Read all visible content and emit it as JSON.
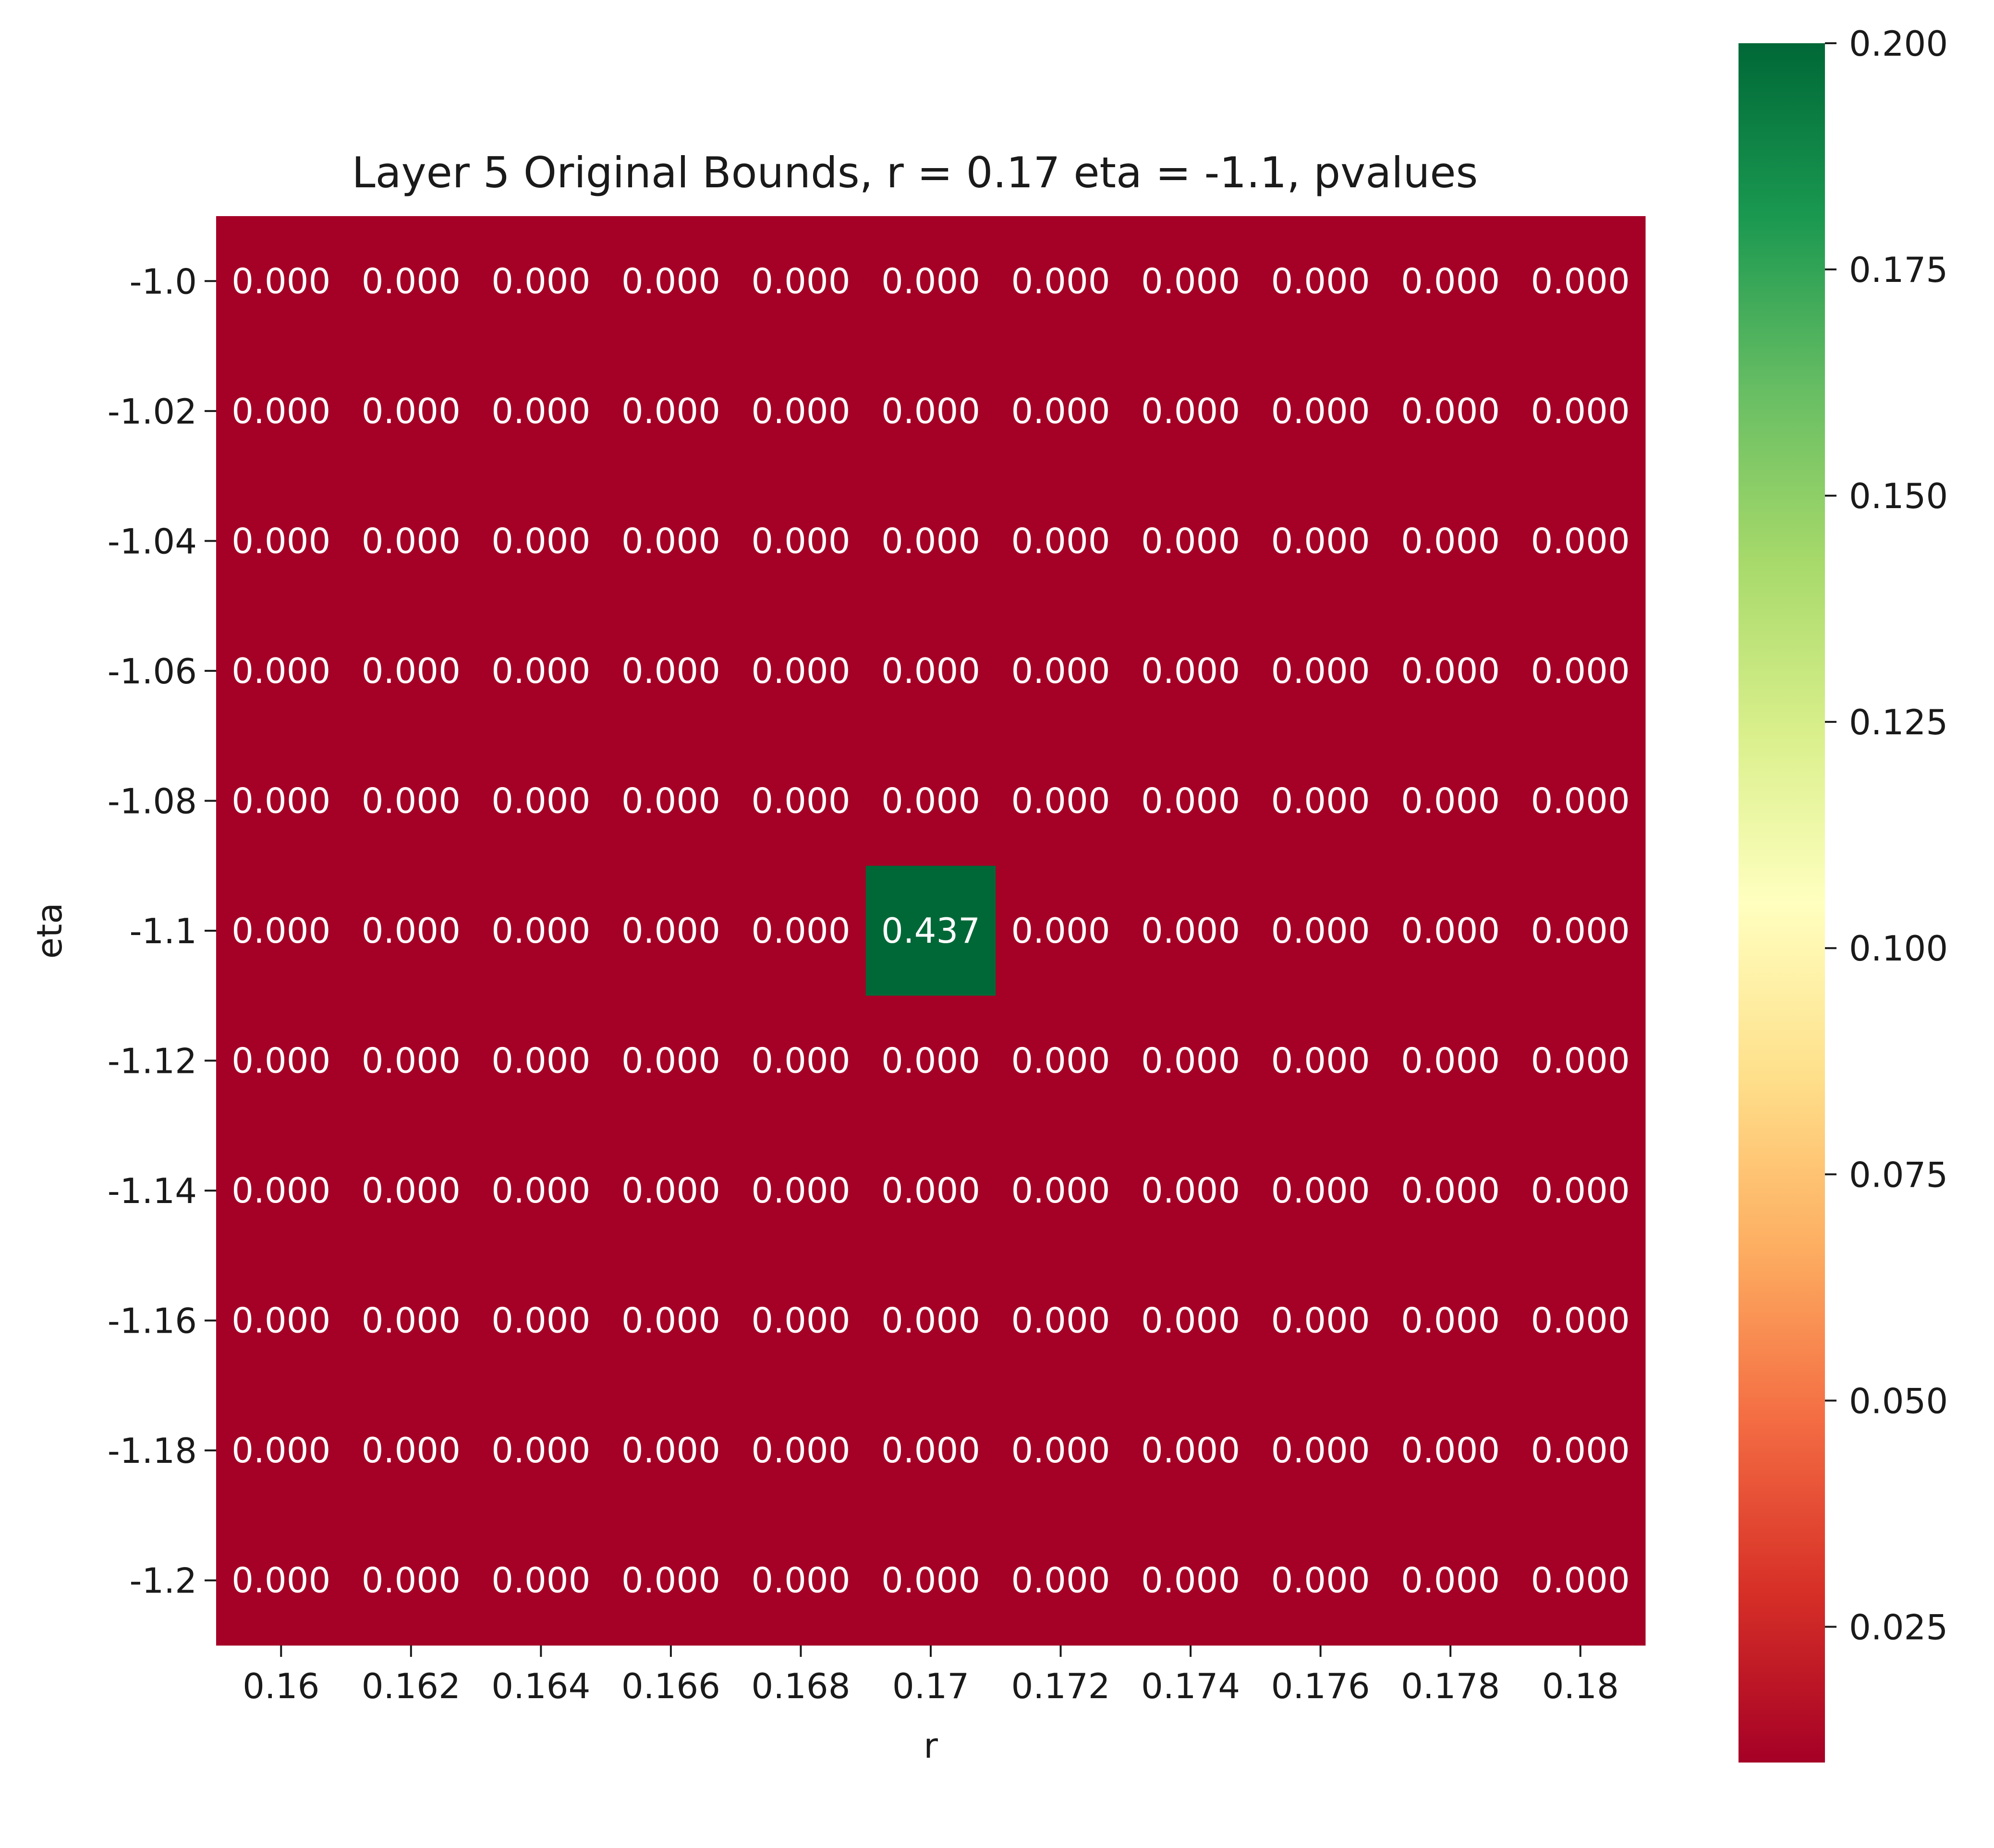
{
  "chart_data": {
    "type": "heatmap",
    "title": "Layer 5 Original Bounds, r = 0.17 eta = -1.1, pvalues",
    "xlabel": "r",
    "ylabel": "eta",
    "x_ticks": [
      "0.16",
      "0.162",
      "0.164",
      "0.166",
      "0.168",
      "0.17",
      "0.172",
      "0.174",
      "0.176",
      "0.178",
      "0.18"
    ],
    "y_ticks": [
      "-1.0",
      "-1.02",
      "-1.04",
      "-1.06",
      "-1.08",
      "-1.1",
      "-1.12",
      "-1.14",
      "-1.16",
      "-1.18",
      "-1.2"
    ],
    "values": [
      [
        0,
        0,
        0,
        0,
        0,
        0,
        0,
        0,
        0,
        0,
        0
      ],
      [
        0,
        0,
        0,
        0,
        0,
        0,
        0,
        0,
        0,
        0,
        0
      ],
      [
        0,
        0,
        0,
        0,
        0,
        0,
        0,
        0,
        0,
        0,
        0
      ],
      [
        0,
        0,
        0,
        0,
        0,
        0,
        0,
        0,
        0,
        0,
        0
      ],
      [
        0,
        0,
        0,
        0,
        0,
        0,
        0,
        0,
        0,
        0,
        0
      ],
      [
        0,
        0,
        0,
        0,
        0,
        0.437,
        0,
        0,
        0,
        0,
        0
      ],
      [
        0,
        0,
        0,
        0,
        0,
        0,
        0,
        0,
        0,
        0,
        0
      ],
      [
        0,
        0,
        0,
        0,
        0,
        0,
        0,
        0,
        0,
        0,
        0
      ],
      [
        0,
        0,
        0,
        0,
        0,
        0,
        0,
        0,
        0,
        0,
        0
      ],
      [
        0,
        0,
        0,
        0,
        0,
        0,
        0,
        0,
        0,
        0,
        0
      ],
      [
        0,
        0,
        0,
        0,
        0,
        0,
        0,
        0,
        0,
        0,
        0
      ]
    ],
    "cell_labels_format": "0.000",
    "colormap": "RdYlGn",
    "color_range": [
      0.01,
      0.2
    ],
    "colorbar_ticks": [
      "0.025",
      "0.050",
      "0.075",
      "0.100",
      "0.125",
      "0.150",
      "0.175",
      "0.200"
    ],
    "colorbar_tick_values": [
      0.025,
      0.05,
      0.075,
      0.1,
      0.125,
      0.15,
      0.175,
      0.2
    ],
    "colors": {
      "low": "#a50026",
      "high": "#006837",
      "cell_text": "#ffffff"
    }
  }
}
